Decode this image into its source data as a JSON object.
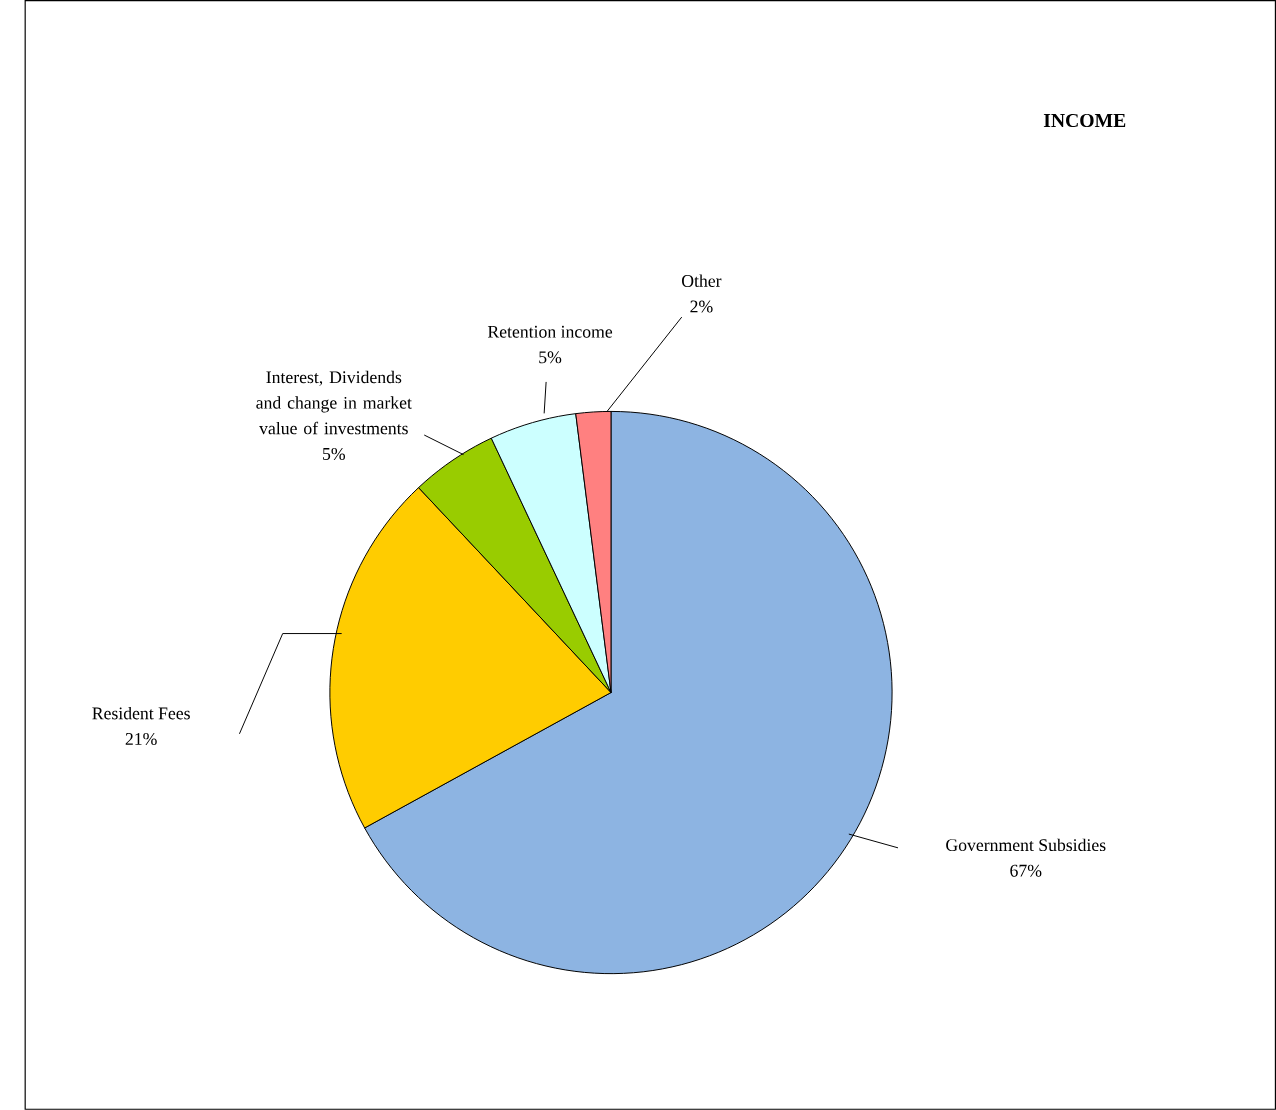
{
  "chart_data": {
    "type": "pie",
    "title": "INCOME",
    "categories": [
      "Government Subsidies",
      "Resident Fees",
      "Interest, Dividends and change in market value of investments",
      "Retention income",
      "Other"
    ],
    "values": [
      67,
      21,
      5,
      5,
      2
    ],
    "value_labels": [
      "67%",
      "21%",
      "5%",
      "5%",
      "2%"
    ],
    "colors": [
      "#8db4e2",
      "#ffcc00",
      "#99cc00",
      "#ccffff",
      "#ff8080"
    ]
  }
}
